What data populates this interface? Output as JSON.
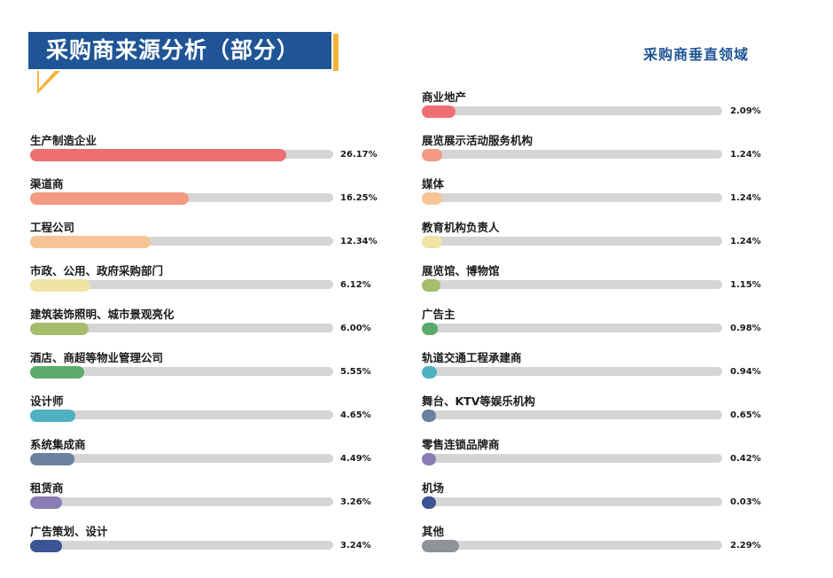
{
  "header": {
    "title": "采购商来源分析（部分）",
    "right_title": "采购商垂直领域"
  },
  "colors": {
    "brand_blue": "#1f5596",
    "accent_yellow": "#f3b43b",
    "track": "#d5d5d5"
  },
  "chart_data": [
    {
      "type": "bar",
      "orientation": "horizontal",
      "title": "采购商来源分析（部分）",
      "categories": [
        "生产制造企业",
        "渠道商",
        "工程公司",
        "市政、公用、政府采购部门",
        "建筑装饰照明、城市景观亮化",
        "酒店、商超等物业管理公司",
        "设计师",
        "系统集成商",
        "租赁商",
        "广告策划、设计"
      ],
      "values": [
        26.17,
        16.25,
        12.34,
        6.12,
        6.0,
        5.55,
        4.65,
        4.49,
        3.26,
        3.24
      ],
      "labels": [
        "26.17%",
        "16.25%",
        "12.34%",
        "6.12%",
        "6.00%",
        "5.55%",
        "4.65%",
        "4.49%",
        "3.26%",
        "3.24%"
      ],
      "colors": [
        "#ee6f72",
        "#f29b82",
        "#f7c495",
        "#efe4a4",
        "#a6bd6b",
        "#5aab6b",
        "#4fb1c2",
        "#6a819f",
        "#8a7cb4",
        "#3a5494"
      ],
      "xlim": [
        0,
        31
      ]
    },
    {
      "type": "bar",
      "orientation": "horizontal",
      "title": "采购商垂直领域",
      "categories": [
        "商业地产",
        "展览展示活动服务机构",
        "媒体",
        "教育机构负责人",
        "展览馆、博物馆",
        "广告主",
        "轨道交通工程承建商",
        "舞台、KTV等娱乐机构",
        "零售连锁品牌商",
        "机场",
        "其他"
      ],
      "values": [
        2.09,
        1.24,
        1.24,
        1.24,
        1.15,
        0.98,
        0.94,
        0.65,
        0.42,
        0.03,
        2.29
      ],
      "labels": [
        "2.09%",
        "1.24%",
        "1.24%",
        "1.24%",
        "1.15%",
        "0.98%",
        "0.94%",
        "0.65%",
        "0.42%",
        "0.03%",
        "2.29%"
      ],
      "colors": [
        "#ee6f72",
        "#f29b82",
        "#f7c495",
        "#efe4a4",
        "#a6bd6b",
        "#5aab6b",
        "#4fb1c2",
        "#6a819f",
        "#8a7cb4",
        "#3a5494",
        "#8f9296"
      ],
      "xlim": [
        0,
        18.5
      ]
    }
  ]
}
